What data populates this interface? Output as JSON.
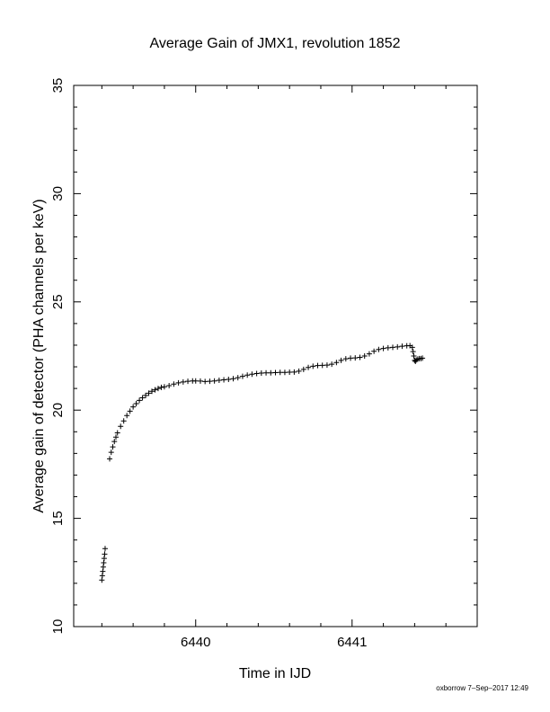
{
  "chart_data": {
    "type": "scatter",
    "title": "Average Gain of JMX1, revolution 1852",
    "xlabel": "Time in IJD",
    "ylabel": "Average gain of detector (PHA channels per keV)",
    "xlim": [
      6439.22,
      6441.8
    ],
    "ylim": [
      10,
      35
    ],
    "xticks": [
      6440,
      6441
    ],
    "yticks": [
      10,
      15,
      20,
      25,
      30,
      35
    ],
    "marker": "+",
    "grid": false,
    "series": [
      {
        "values": [
          [
            6439.4,
            12.15
          ],
          [
            6439.403,
            12.35
          ],
          [
            6439.406,
            12.55
          ],
          [
            6439.409,
            12.75
          ],
          [
            6439.412,
            12.95
          ],
          [
            6439.415,
            13.15
          ],
          [
            6439.418,
            13.35
          ],
          [
            6439.421,
            13.6
          ],
          [
            6439.45,
            17.75
          ],
          [
            6439.46,
            18.05
          ],
          [
            6439.47,
            18.3
          ],
          [
            6439.48,
            18.55
          ],
          [
            6439.49,
            18.75
          ],
          [
            6439.5,
            18.95
          ],
          [
            6439.52,
            19.25
          ],
          [
            6439.54,
            19.5
          ],
          [
            6439.56,
            19.75
          ],
          [
            6439.58,
            19.95
          ],
          [
            6439.6,
            20.15
          ],
          [
            6439.62,
            20.3
          ],
          [
            6439.64,
            20.45
          ],
          [
            6439.66,
            20.57
          ],
          [
            6439.68,
            20.68
          ],
          [
            6439.7,
            20.78
          ],
          [
            6439.72,
            20.87
          ],
          [
            6439.74,
            20.94
          ],
          [
            6439.76,
            21.0
          ],
          [
            6439.78,
            21.05
          ],
          [
            6439.8,
            21.08
          ],
          [
            6439.83,
            21.13
          ],
          [
            6439.86,
            21.2
          ],
          [
            6439.89,
            21.26
          ],
          [
            6439.92,
            21.3
          ],
          [
            6439.95,
            21.33
          ],
          [
            6439.98,
            21.35
          ],
          [
            6440.0,
            21.35
          ],
          [
            6440.03,
            21.34
          ],
          [
            6440.06,
            21.32
          ],
          [
            6440.09,
            21.33
          ],
          [
            6440.12,
            21.35
          ],
          [
            6440.15,
            21.38
          ],
          [
            6440.18,
            21.4
          ],
          [
            6440.21,
            21.42
          ],
          [
            6440.24,
            21.45
          ],
          [
            6440.27,
            21.5
          ],
          [
            6440.3,
            21.56
          ],
          [
            6440.33,
            21.62
          ],
          [
            6440.36,
            21.66
          ],
          [
            6440.39,
            21.69
          ],
          [
            6440.42,
            21.71
          ],
          [
            6440.45,
            21.72
          ],
          [
            6440.48,
            21.72
          ],
          [
            6440.51,
            21.73
          ],
          [
            6440.54,
            21.74
          ],
          [
            6440.57,
            21.74
          ],
          [
            6440.6,
            21.75
          ],
          [
            6440.63,
            21.76
          ],
          [
            6440.66,
            21.8
          ],
          [
            6440.69,
            21.88
          ],
          [
            6440.72,
            21.97
          ],
          [
            6440.75,
            22.03
          ],
          [
            6440.78,
            22.06
          ],
          [
            6440.81,
            22.07
          ],
          [
            6440.84,
            22.08
          ],
          [
            6440.87,
            22.12
          ],
          [
            6440.9,
            22.2
          ],
          [
            6440.93,
            22.3
          ],
          [
            6440.96,
            22.37
          ],
          [
            6440.99,
            22.4
          ],
          [
            6441.02,
            22.41
          ],
          [
            6441.05,
            22.44
          ],
          [
            6441.08,
            22.5
          ],
          [
            6441.11,
            22.6
          ],
          [
            6441.14,
            22.72
          ],
          [
            6441.17,
            22.8
          ],
          [
            6441.2,
            22.85
          ],
          [
            6441.23,
            22.88
          ],
          [
            6441.26,
            22.9
          ],
          [
            6441.29,
            22.92
          ],
          [
            6441.32,
            22.95
          ],
          [
            6441.35,
            22.97
          ],
          [
            6441.37,
            22.98
          ],
          [
            6441.385,
            22.9
          ],
          [
            6441.39,
            22.7
          ],
          [
            6441.395,
            22.5
          ],
          [
            6441.4,
            22.3
          ],
          [
            6441.405,
            22.25
          ],
          [
            6441.41,
            22.32
          ],
          [
            6441.42,
            22.36
          ],
          [
            6441.43,
            22.38
          ],
          [
            6441.44,
            22.38
          ],
          [
            6441.45,
            22.4
          ]
        ]
      }
    ]
  },
  "footer": "oxborrow  7–Sep–2017 12:49"
}
